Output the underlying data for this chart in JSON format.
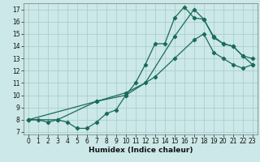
{
  "xlabel": "Humidex (Indice chaleur)",
  "bg_color": "#cce8e8",
  "grid_color": "#aacfcf",
  "line_color": "#1a6b5a",
  "xlim": [
    -0.5,
    23.5
  ],
  "ylim": [
    6.8,
    17.5
  ],
  "xticks": [
    0,
    1,
    2,
    3,
    4,
    5,
    6,
    7,
    8,
    9,
    10,
    11,
    12,
    13,
    14,
    15,
    16,
    17,
    18,
    19,
    20,
    21,
    22,
    23
  ],
  "yticks": [
    7,
    8,
    9,
    10,
    11,
    12,
    13,
    14,
    15,
    16,
    17
  ],
  "line1_x": [
    0,
    1,
    2,
    3,
    4,
    5,
    6,
    7,
    8,
    9,
    10,
    11,
    12,
    13,
    14,
    15,
    16,
    17,
    18,
    19,
    20,
    21,
    22,
    23
  ],
  "line1_y": [
    8,
    8,
    7.8,
    8,
    7.8,
    7.3,
    7.3,
    7.8,
    8.5,
    8.8,
    10.0,
    11.0,
    12.5,
    14.2,
    14.2,
    16.3,
    17.2,
    16.3,
    16.2,
    14.8,
    14.2,
    14.0,
    13.2,
    12.5
  ],
  "line2_x": [
    0,
    3,
    7,
    10,
    12,
    15,
    17,
    18,
    19,
    20,
    21,
    22,
    23
  ],
  "line2_y": [
    8,
    8,
    9.5,
    10.2,
    11.0,
    14.8,
    17.0,
    16.2,
    14.7,
    14.2,
    14.0,
    13.2,
    13.0
  ],
  "line3_x": [
    0,
    7,
    10,
    13,
    15,
    17,
    18,
    19,
    20,
    21,
    22,
    23
  ],
  "line3_y": [
    8,
    9.5,
    10.0,
    11.5,
    13.0,
    14.5,
    15.0,
    13.5,
    13.0,
    12.5,
    12.2,
    12.5
  ],
  "fontsize_tick": 5.5,
  "fontsize_label": 6.5
}
